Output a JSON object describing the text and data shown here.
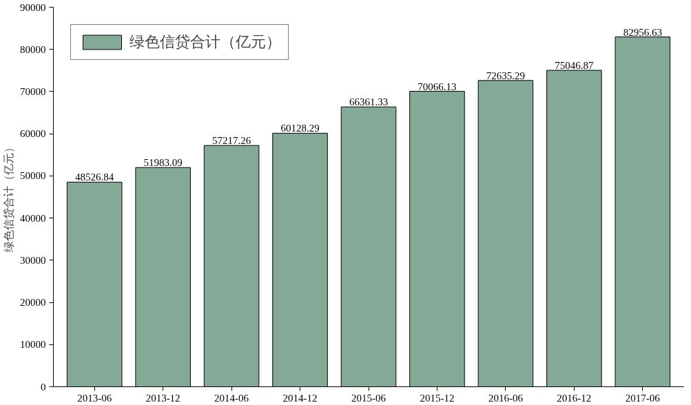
{
  "chart_data": {
    "type": "bar",
    "ylabel": "绿色信贷合计（亿元）",
    "categories": [
      "2013-06",
      "2013-12",
      "2014-06",
      "2014-12",
      "2015-06",
      "2015-12",
      "2016-06",
      "2016-12",
      "2017-06"
    ],
    "series": [
      {
        "name": "绿色信贷合计（亿元）",
        "color": "#85a997",
        "values": [
          48526.84,
          51983.09,
          57217.26,
          60128.29,
          66361.33,
          70066.13,
          72635.29,
          75046.87,
          82956.63
        ]
      }
    ],
    "ylim": [
      0,
      90000
    ],
    "yticks": [
      0,
      10000,
      20000,
      30000,
      40000,
      50000,
      60000,
      70000,
      80000,
      90000
    ],
    "data_labels": true,
    "legend": "top left",
    "grid": false
  }
}
